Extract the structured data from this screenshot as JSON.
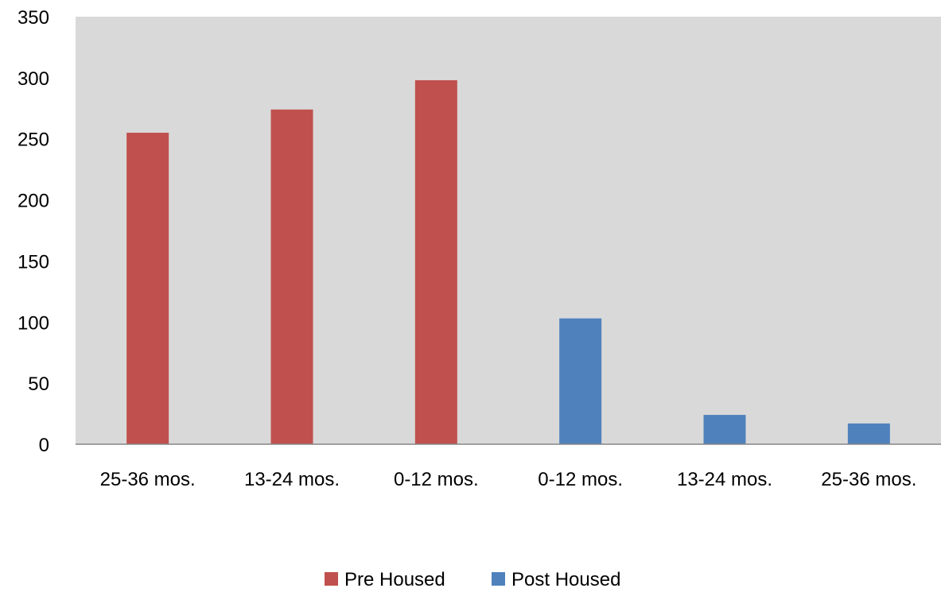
{
  "chart_data": {
    "type": "bar",
    "categories": [
      "25-36 mos.",
      "13-24 mos.",
      "0-12 mos.",
      "0-12 mos.",
      "13-24 mos.",
      "25-36 mos."
    ],
    "series": [
      {
        "name": "Pre Housed",
        "color": "#c0504d",
        "values": [
          255,
          274,
          298,
          null,
          null,
          null
        ]
      },
      {
        "name": "Post Housed",
        "color": "#4f81bd",
        "values": [
          null,
          null,
          null,
          103,
          24,
          17
        ]
      }
    ],
    "ylim": [
      0,
      350
    ],
    "yticks": [
      0,
      50,
      100,
      150,
      200,
      250,
      300,
      350
    ],
    "grid": false,
    "plot_background": "#d9d9d9",
    "legend_position": "bottom"
  }
}
